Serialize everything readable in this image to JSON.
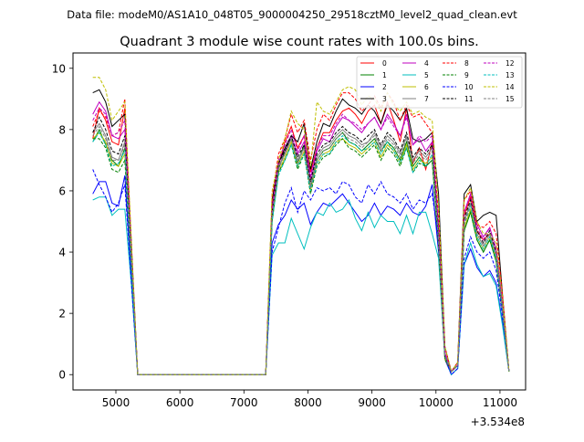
{
  "chart_data": {
    "type": "line",
    "suptitle": "Data file: modeM0/AS1A10_048T05_9000004250_29518cztM0_level2_quad_clean.evt",
    "title": "Quadrant 3 module wise count rates with 100.0s bins.",
    "xlabel": "",
    "ylabel": "",
    "x_offset_label": "+3.534e8",
    "xlim": [
      4330,
      11400
    ],
    "ylim": [
      -0.5,
      10.5
    ],
    "x_ticks": [
      5000,
      6000,
      7000,
      8000,
      9000,
      10000,
      11000
    ],
    "x_tick_labels": [
      "5000",
      "6000",
      "7000",
      "8000",
      "9000",
      "10000",
      "11000"
    ],
    "y_ticks": [
      0,
      2,
      4,
      6,
      8,
      10
    ],
    "y_tick_labels": [
      "0",
      "2",
      "4",
      "6",
      "8",
      "10"
    ],
    "x": [
      4640,
      4740,
      4840,
      4940,
      5040,
      5140,
      5240,
      5340,
      5440,
      5540,
      5640,
      5740,
      5840,
      5940,
      6040,
      6140,
      6240,
      6340,
      6440,
      6540,
      6640,
      6740,
      6840,
      6940,
      7040,
      7140,
      7240,
      7340,
      7440,
      7540,
      7640,
      7740,
      7840,
      7940,
      8040,
      8140,
      8240,
      8340,
      8440,
      8540,
      8640,
      8740,
      8840,
      8940,
      9040,
      9140,
      9240,
      9340,
      9440,
      9540,
      9640,
      9740,
      9840,
      9940,
      10040,
      10140,
      10240,
      10340,
      10440,
      10540,
      10640,
      10740,
      10840,
      10940,
      11040,
      11140
    ],
    "series": [
      {
        "name": "0",
        "color": "#ff0000",
        "dash": false,
        "values": [
          7.7,
          8.7,
          8.3,
          7.6,
          7.5,
          8.7,
          4.2,
          0,
          0,
          0,
          0,
          0,
          0,
          0,
          0,
          0,
          0,
          0,
          0,
          0,
          0,
          0,
          0,
          0,
          0,
          0,
          0,
          0,
          5.5,
          6.8,
          7.6,
          8.1,
          7.4,
          7.8,
          6.6,
          7.4,
          7.9,
          7.9,
          8.3,
          8.6,
          8.7,
          8.5,
          8.2,
          8.6,
          8.8,
          8.2,
          8.9,
          8.3,
          7.6,
          8.7,
          6.9,
          7.4,
          6.7,
          7.6,
          4.6,
          0.7,
          0.1,
          0.3,
          5.2,
          5.8,
          4.7,
          4.4,
          4.6,
          3.9,
          2.3,
          0.1
        ]
      },
      {
        "name": "1",
        "color": "#008000",
        "dash": false,
        "values": [
          7.6,
          8.0,
          7.5,
          7.0,
          6.8,
          7.4,
          3.8,
          0,
          0,
          0,
          0,
          0,
          0,
          0,
          0,
          0,
          0,
          0,
          0,
          0,
          0,
          0,
          0,
          0,
          0,
          0,
          0,
          0,
          5.0,
          6.7,
          7.3,
          7.7,
          6.9,
          7.5,
          6.1,
          7.0,
          7.3,
          7.4,
          7.7,
          7.9,
          7.6,
          7.5,
          7.3,
          7.5,
          7.7,
          7.3,
          7.6,
          7.4,
          7.0,
          7.6,
          6.8,
          7.1,
          6.8,
          7.0,
          4.2,
          0.5,
          0.1,
          0.3,
          4.7,
          5.3,
          4.4,
          4.0,
          4.4,
          3.7,
          2.0,
          0.1
        ]
      },
      {
        "name": "2",
        "color": "#0000ff",
        "dash": false,
        "values": [
          5.9,
          6.3,
          6.3,
          5.6,
          5.5,
          6.5,
          3.2,
          0,
          0,
          0,
          0,
          0,
          0,
          0,
          0,
          0,
          0,
          0,
          0,
          0,
          0,
          0,
          0,
          0,
          0,
          0,
          0,
          0,
          4.3,
          4.9,
          5.2,
          5.7,
          5.4,
          5.6,
          4.9,
          5.3,
          5.6,
          5.5,
          5.7,
          5.9,
          5.6,
          5.3,
          5.0,
          5.2,
          5.6,
          5.2,
          5.5,
          5.4,
          5.2,
          5.6,
          5.3,
          5.2,
          5.5,
          6.2,
          4.0,
          0.5,
          0.0,
          0.2,
          3.6,
          4.1,
          3.5,
          3.2,
          3.4,
          3.0,
          1.7,
          0.1
        ]
      },
      {
        "name": "3",
        "color": "#000000",
        "dash": false,
        "values": [
          9.2,
          9.3,
          8.9,
          8.1,
          8.3,
          8.5,
          4.4,
          0,
          0,
          0,
          0,
          0,
          0,
          0,
          0,
          0,
          0,
          0,
          0,
          0,
          0,
          0,
          0,
          0,
          0,
          0,
          0,
          0,
          5.7,
          6.9,
          7.4,
          7.8,
          7.6,
          8.2,
          6.7,
          7.6,
          8.2,
          8.1,
          8.6,
          9.0,
          8.8,
          8.7,
          8.5,
          8.8,
          8.6,
          8.2,
          8.8,
          8.6,
          8.3,
          8.7,
          7.7,
          7.6,
          7.7,
          7.9,
          5.9,
          0.9,
          0.1,
          0.4,
          5.9,
          6.2,
          5.0,
          5.2,
          5.3,
          5.2,
          2.6,
          0.1
        ]
      },
      {
        "name": "4",
        "color": "#bf00bf",
        "dash": false,
        "values": [
          8.5,
          8.9,
          8.6,
          7.8,
          7.7,
          8.0,
          4.1,
          0,
          0,
          0,
          0,
          0,
          0,
          0,
          0,
          0,
          0,
          0,
          0,
          0,
          0,
          0,
          0,
          0,
          0,
          0,
          0,
          0,
          5.4,
          6.9,
          7.3,
          7.8,
          7.2,
          7.6,
          6.4,
          7.3,
          7.7,
          7.6,
          8.1,
          8.4,
          8.3,
          8.1,
          7.9,
          8.2,
          8.4,
          8.0,
          8.5,
          8.2,
          7.8,
          8.5,
          7.5,
          7.7,
          7.3,
          7.6,
          4.8,
          0.7,
          0.1,
          0.3,
          5.3,
          5.9,
          4.9,
          4.5,
          4.8,
          4.1,
          2.3,
          0.1
        ]
      },
      {
        "name": "5",
        "color": "#00bfbf",
        "dash": false,
        "values": [
          5.7,
          5.8,
          5.8,
          5.2,
          5.4,
          5.4,
          3.0,
          0,
          0,
          0,
          0,
          0,
          0,
          0,
          0,
          0,
          0,
          0,
          0,
          0,
          0,
          0,
          0,
          0,
          0,
          0,
          0,
          0,
          3.9,
          4.3,
          4.3,
          5.1,
          4.6,
          4.1,
          4.8,
          5.3,
          5.2,
          5.6,
          5.3,
          5.4,
          5.7,
          5.1,
          4.7,
          5.3,
          4.8,
          5.2,
          5.0,
          5.0,
          4.6,
          5.2,
          4.6,
          5.3,
          5.3,
          4.6,
          3.8,
          0.6,
          0.0,
          0.2,
          3.6,
          4.3,
          3.6,
          3.2,
          3.3,
          2.9,
          1.6,
          0.1
        ]
      },
      {
        "name": "6",
        "color": "#bfbf00",
        "dash": false,
        "values": [
          7.7,
          7.9,
          7.6,
          6.9,
          6.8,
          7.2,
          3.7,
          0,
          0,
          0,
          0,
          0,
          0,
          0,
          0,
          0,
          0,
          0,
          0,
          0,
          0,
          0,
          0,
          0,
          0,
          0,
          0,
          0,
          5.1,
          6.6,
          7.1,
          7.6,
          6.8,
          7.3,
          6.0,
          6.9,
          7.2,
          7.3,
          7.6,
          7.7,
          7.5,
          7.4,
          7.2,
          7.4,
          7.6,
          7.1,
          7.5,
          7.3,
          6.9,
          7.5,
          6.7,
          7.0,
          6.9,
          7.1,
          4.3,
          0.5,
          0.1,
          0.3,
          4.8,
          5.4,
          4.5,
          4.1,
          4.5,
          3.8,
          2.1,
          0.1
        ]
      },
      {
        "name": "7",
        "color": "#808080",
        "dash": false,
        "values": [
          7.9,
          8.2,
          7.8,
          7.1,
          7.0,
          7.6,
          3.9,
          0,
          0,
          0,
          0,
          0,
          0,
          0,
          0,
          0,
          0,
          0,
          0,
          0,
          0,
          0,
          0,
          0,
          0,
          0,
          0,
          0,
          5.2,
          6.8,
          7.2,
          7.7,
          7.0,
          7.4,
          6.2,
          7.1,
          7.4,
          7.5,
          7.8,
          8.0,
          7.8,
          7.7,
          7.5,
          7.6,
          7.9,
          7.4,
          7.8,
          7.6,
          7.2,
          7.8,
          7.0,
          7.3,
          7.1,
          7.4,
          4.5,
          0.6,
          0.1,
          0.3,
          5.0,
          5.6,
          4.6,
          4.2,
          4.6,
          3.9,
          2.2,
          0.1
        ]
      },
      {
        "name": "8",
        "color": "#ff0000",
        "dash": true,
        "values": [
          8.1,
          8.6,
          8.4,
          7.8,
          7.9,
          9.0,
          4.3,
          0,
          0,
          0,
          0,
          0,
          0,
          0,
          0,
          0,
          0,
          0,
          0,
          0,
          0,
          0,
          0,
          0,
          0,
          0,
          0,
          0,
          5.8,
          7.2,
          7.7,
          8.5,
          7.9,
          8.3,
          7.0,
          8.0,
          8.5,
          8.3,
          8.8,
          9.2,
          9.2,
          9.0,
          8.6,
          8.8,
          9.1,
          8.7,
          9.2,
          8.9,
          8.3,
          8.8,
          8.4,
          8.5,
          8.2,
          7.9,
          5.2,
          0.9,
          0.1,
          0.4,
          5.7,
          6.0,
          4.9,
          4.8,
          5.0,
          4.6,
          2.6,
          0.1
        ]
      },
      {
        "name": "9",
        "color": "#008000",
        "dash": true,
        "values": [
          7.7,
          7.7,
          7.4,
          6.7,
          6.6,
          7.0,
          3.6,
          0,
          0,
          0,
          0,
          0,
          0,
          0,
          0,
          0,
          0,
          0,
          0,
          0,
          0,
          0,
          0,
          0,
          0,
          0,
          0,
          0,
          5.0,
          6.6,
          7.0,
          7.5,
          6.7,
          7.2,
          5.9,
          6.8,
          7.1,
          7.2,
          7.5,
          7.7,
          7.4,
          7.3,
          7.1,
          7.3,
          7.5,
          7.0,
          7.4,
          7.2,
          6.8,
          7.4,
          6.6,
          6.9,
          6.8,
          7.0,
          4.2,
          0.5,
          0.1,
          0.3,
          4.7,
          5.3,
          4.4,
          4.0,
          4.4,
          3.7,
          2.0,
          0.1
        ]
      },
      {
        "name": "10",
        "color": "#0000ff",
        "dash": true,
        "values": [
          6.7,
          6.2,
          5.8,
          5.3,
          5.6,
          6.2,
          3.1,
          0,
          0,
          0,
          0,
          0,
          0,
          0,
          0,
          0,
          0,
          0,
          0,
          0,
          0,
          0,
          0,
          0,
          0,
          0,
          0,
          0,
          4.0,
          4.8,
          5.6,
          6.1,
          5.3,
          6.0,
          5.7,
          6.1,
          6.0,
          6.1,
          5.9,
          6.3,
          6.2,
          5.8,
          5.6,
          6.2,
          5.9,
          6.3,
          5.9,
          5.8,
          5.6,
          5.9,
          5.4,
          5.7,
          5.6,
          5.9,
          4.4,
          0.6,
          0.0,
          0.2,
          3.8,
          4.5,
          4.0,
          3.8,
          4.0,
          3.4,
          1.9,
          0.1
        ]
      },
      {
        "name": "11",
        "color": "#000000",
        "dash": true,
        "values": [
          7.9,
          8.4,
          8.0,
          7.3,
          7.2,
          7.8,
          4.0,
          0,
          0,
          0,
          0,
          0,
          0,
          0,
          0,
          0,
          0,
          0,
          0,
          0,
          0,
          0,
          0,
          0,
          0,
          0,
          0,
          0,
          5.3,
          6.9,
          7.3,
          7.8,
          7.1,
          7.5,
          6.3,
          7.2,
          7.5,
          7.6,
          7.9,
          8.1,
          7.9,
          7.8,
          7.6,
          7.8,
          8.0,
          7.5,
          7.9,
          7.7,
          7.3,
          7.9,
          7.1,
          7.4,
          7.2,
          7.5,
          4.6,
          0.6,
          0.1,
          0.3,
          5.1,
          5.7,
          4.7,
          4.3,
          4.7,
          4.0,
          2.2,
          0.1
        ]
      },
      {
        "name": "12",
        "color": "#bf00bf",
        "dash": true,
        "values": [
          8.3,
          8.7,
          8.5,
          7.8,
          7.9,
          8.3,
          4.1,
          0,
          0,
          0,
          0,
          0,
          0,
          0,
          0,
          0,
          0,
          0,
          0,
          0,
          0,
          0,
          0,
          0,
          0,
          0,
          0,
          0,
          5.4,
          7.0,
          7.5,
          8.0,
          7.3,
          7.8,
          6.5,
          7.4,
          7.8,
          7.8,
          8.2,
          8.5,
          8.3,
          8.2,
          8.0,
          8.2,
          8.4,
          8.0,
          8.4,
          8.1,
          7.8,
          8.4,
          7.5,
          7.8,
          7.6,
          7.8,
          4.8,
          0.7,
          0.1,
          0.3,
          5.3,
          5.9,
          4.8,
          4.4,
          4.8,
          4.1,
          2.3,
          0.1
        ]
      },
      {
        "name": "13",
        "color": "#00bfbf",
        "dash": true,
        "values": [
          7.6,
          7.9,
          7.5,
          6.8,
          6.9,
          7.3,
          3.7,
          0,
          0,
          0,
          0,
          0,
          0,
          0,
          0,
          0,
          0,
          0,
          0,
          0,
          0,
          0,
          0,
          0,
          0,
          0,
          0,
          0,
          5.0,
          6.5,
          7.0,
          7.5,
          6.8,
          7.2,
          6.0,
          6.9,
          7.2,
          7.2,
          7.6,
          7.8,
          7.6,
          7.5,
          7.3,
          7.4,
          7.6,
          7.2,
          7.6,
          7.3,
          6.9,
          7.4,
          6.6,
          7.0,
          6.8,
          7.2,
          4.4,
          0.6,
          0.1,
          0.3,
          4.9,
          5.5,
          4.5,
          4.1,
          4.5,
          3.8,
          2.1,
          0.1
        ]
      },
      {
        "name": "14",
        "color": "#bfbf00",
        "dash": true,
        "values": [
          9.7,
          9.7,
          9.3,
          8.3,
          8.6,
          8.9,
          4.5,
          0,
          0,
          0,
          0,
          0,
          0,
          0,
          0,
          0,
          0,
          0,
          0,
          0,
          0,
          0,
          0,
          0,
          0,
          0,
          0,
          0,
          6.0,
          7.0,
          7.7,
          8.6,
          8.2,
          8.0,
          6.8,
          8.9,
          8.6,
          8.5,
          8.9,
          9.3,
          9.4,
          9.3,
          8.8,
          9.1,
          9.0,
          8.6,
          9.2,
          8.8,
          8.6,
          8.9,
          8.5,
          8.6,
          8.4,
          8.3,
          5.5,
          0.9,
          0.1,
          0.4,
          5.7,
          6.1,
          5.0,
          4.6,
          4.6,
          4.3,
          2.5,
          0.1
        ]
      },
      {
        "name": "15",
        "color": "#808080",
        "dash": true,
        "values": [
          7.8,
          8.1,
          7.7,
          7.0,
          7.0,
          7.5,
          3.8,
          0,
          0,
          0,
          0,
          0,
          0,
          0,
          0,
          0,
          0,
          0,
          0,
          0,
          0,
          0,
          0,
          0,
          0,
          0,
          0,
          0,
          5.2,
          6.7,
          7.2,
          7.7,
          6.9,
          7.4,
          6.1,
          7.0,
          7.3,
          7.4,
          7.7,
          7.9,
          7.7,
          7.6,
          7.4,
          7.6,
          7.8,
          7.3,
          7.7,
          7.5,
          7.1,
          7.7,
          6.9,
          7.2,
          7.0,
          7.3,
          4.4,
          0.6,
          0.1,
          0.3,
          4.9,
          5.6,
          4.6,
          4.2,
          4.6,
          3.9,
          2.1,
          0.1
        ]
      }
    ]
  }
}
